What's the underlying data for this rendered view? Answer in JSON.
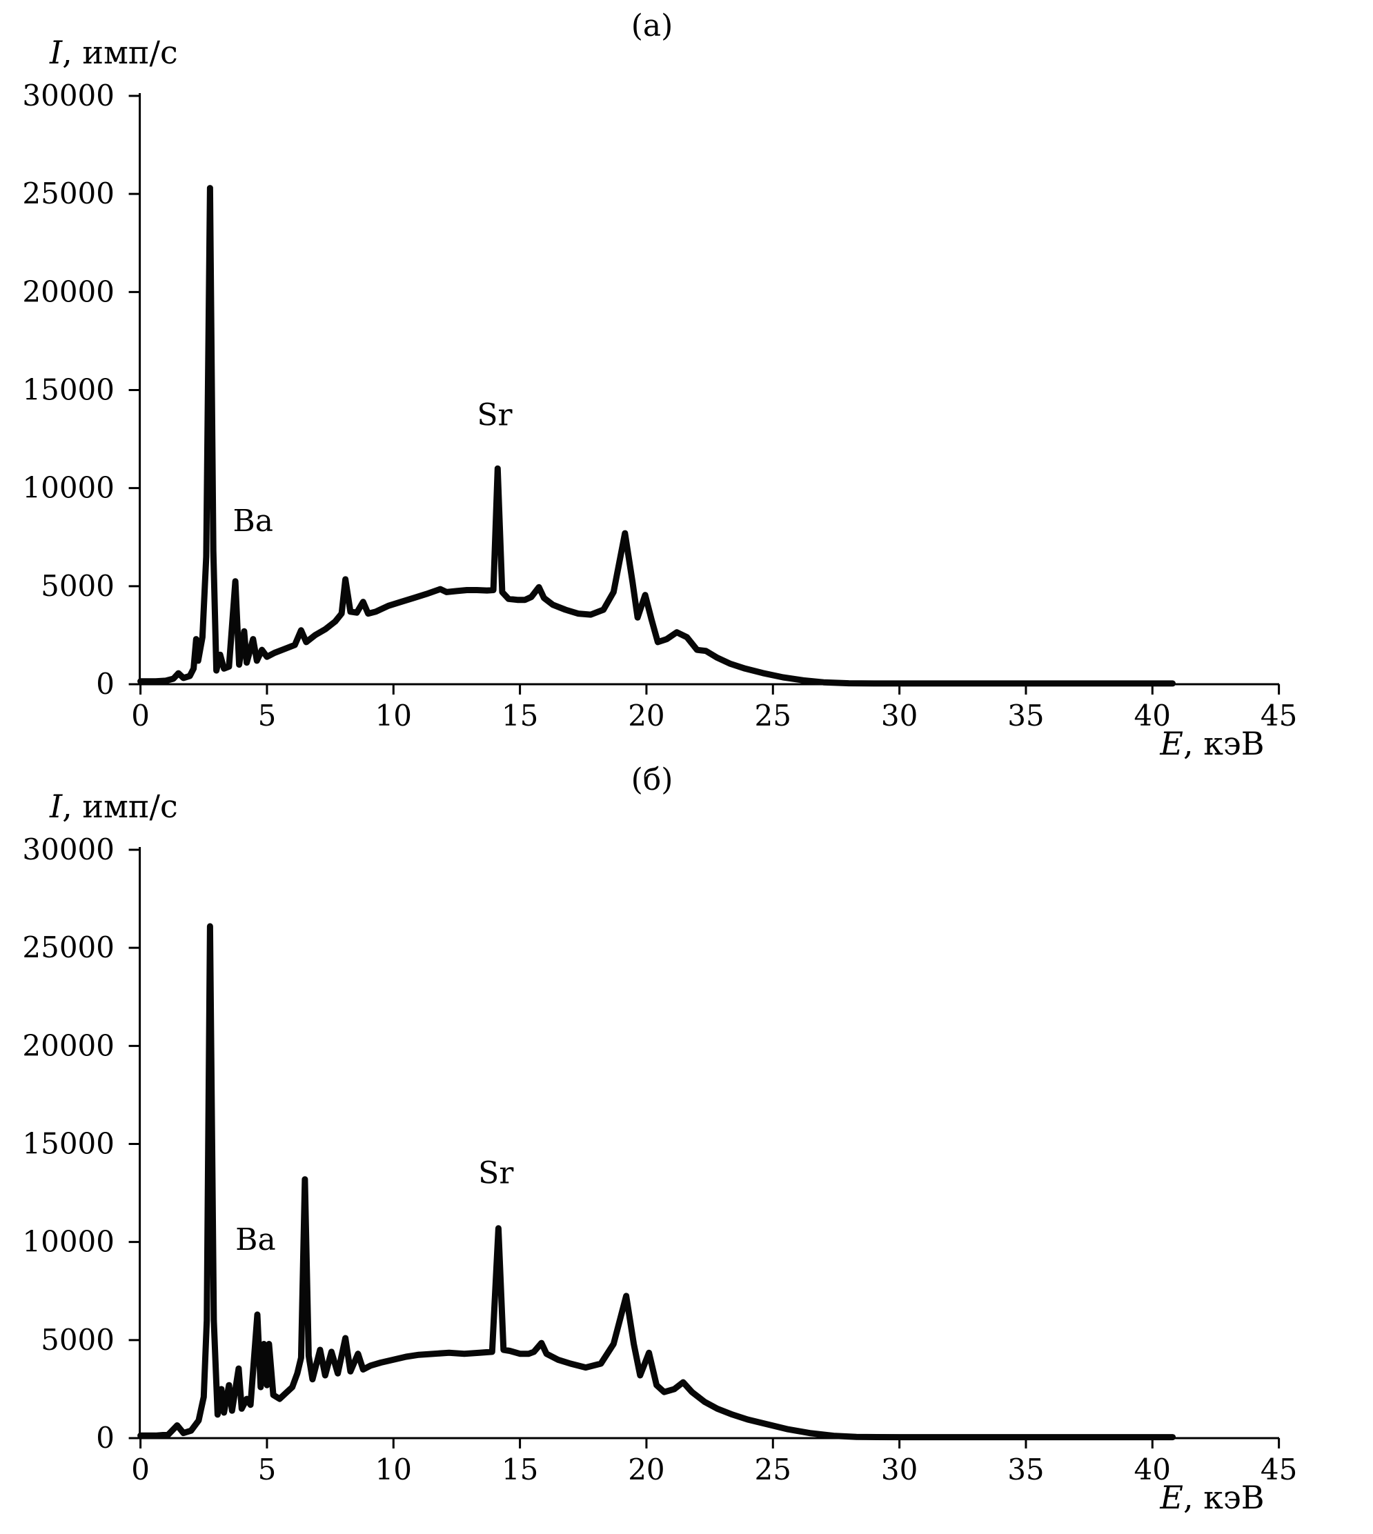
{
  "chart_data": [
    {
      "type": "line",
      "panel_tag": "(а)",
      "title": "(а)",
      "ylabel": "I, имп/с",
      "ylabel_sym": "I",
      "ylabel_rest": ", имп/с",
      "xlabel": "E, кэВ",
      "xlabel_sym": "E",
      "xlabel_rest": ", кэВ",
      "xlim": [
        0,
        45
      ],
      "ylim": [
        0,
        30000
      ],
      "x_ticks": [
        0,
        5,
        10,
        15,
        20,
        25,
        30,
        35,
        40,
        45
      ],
      "y_ticks": [
        30000,
        25000,
        20000,
        15000,
        10000,
        5000,
        0
      ],
      "grid": false,
      "legend": "none",
      "line_color": "#000000",
      "annotations": [
        {
          "label": "Ba",
          "x": 4.45,
          "y": 7800
        },
        {
          "label": "Sr",
          "x": 14.0,
          "y": 13200
        }
      ],
      "series": [
        {
          "name": "spectrum-a",
          "points": [
            [
              0,
              150
            ],
            [
              0.6,
              150
            ],
            [
              1.0,
              180
            ],
            [
              1.3,
              280
            ],
            [
              1.5,
              560
            ],
            [
              1.7,
              320
            ],
            [
              1.95,
              420
            ],
            [
              2.1,
              800
            ],
            [
              2.2,
              2300
            ],
            [
              2.28,
              1200
            ],
            [
              2.45,
              2400
            ],
            [
              2.6,
              6500
            ],
            [
              2.75,
              25300
            ],
            [
              2.88,
              6800
            ],
            [
              3.0,
              700
            ],
            [
              3.15,
              1500
            ],
            [
              3.3,
              800
            ],
            [
              3.5,
              900
            ],
            [
              3.75,
              5250
            ],
            [
              3.9,
              1000
            ],
            [
              4.1,
              2700
            ],
            [
              4.2,
              1100
            ],
            [
              4.45,
              2300
            ],
            [
              4.6,
              1200
            ],
            [
              4.8,
              1750
            ],
            [
              5.0,
              1400
            ],
            [
              5.3,
              1600
            ],
            [
              5.7,
              1800
            ],
            [
              6.1,
              2000
            ],
            [
              6.35,
              2750
            ],
            [
              6.55,
              2150
            ],
            [
              6.9,
              2500
            ],
            [
              7.3,
              2800
            ],
            [
              7.7,
              3200
            ],
            [
              7.95,
              3600
            ],
            [
              8.1,
              5350
            ],
            [
              8.3,
              3700
            ],
            [
              8.55,
              3650
            ],
            [
              8.8,
              4200
            ],
            [
              9.0,
              3600
            ],
            [
              9.3,
              3700
            ],
            [
              9.8,
              4000
            ],
            [
              10.3,
              4200
            ],
            [
              10.8,
              4400
            ],
            [
              11.3,
              4600
            ],
            [
              11.85,
              4850
            ],
            [
              12.1,
              4700
            ],
            [
              12.5,
              4750
            ],
            [
              12.9,
              4800
            ],
            [
              13.3,
              4800
            ],
            [
              13.7,
              4780
            ],
            [
              13.95,
              4800
            ],
            [
              14.12,
              11000
            ],
            [
              14.3,
              4700
            ],
            [
              14.55,
              4350
            ],
            [
              14.9,
              4300
            ],
            [
              15.2,
              4300
            ],
            [
              15.45,
              4450
            ],
            [
              15.75,
              4950
            ],
            [
              15.95,
              4400
            ],
            [
              16.3,
              4050
            ],
            [
              16.8,
              3800
            ],
            [
              17.3,
              3600
            ],
            [
              17.8,
              3550
            ],
            [
              18.3,
              3800
            ],
            [
              18.7,
              4700
            ],
            [
              19.15,
              7700
            ],
            [
              19.45,
              5200
            ],
            [
              19.65,
              3400
            ],
            [
              19.95,
              4550
            ],
            [
              20.2,
              3300
            ],
            [
              20.45,
              2150
            ],
            [
              20.8,
              2300
            ],
            [
              21.2,
              2650
            ],
            [
              21.6,
              2400
            ],
            [
              22.0,
              1750
            ],
            [
              22.35,
              1700
            ],
            [
              22.8,
              1350
            ],
            [
              23.3,
              1050
            ],
            [
              23.9,
              800
            ],
            [
              24.6,
              570
            ],
            [
              25.4,
              350
            ],
            [
              26.2,
              200
            ],
            [
              27.0,
              100
            ],
            [
              28.0,
              50
            ],
            [
              29.0,
              40
            ],
            [
              31,
              40
            ],
            [
              34,
              40
            ],
            [
              37,
              40
            ],
            [
              40.8,
              40
            ]
          ]
        }
      ]
    },
    {
      "type": "line",
      "panel_tag": "(б)",
      "title": "(б)",
      "ylabel": "I, имп/с",
      "ylabel_sym": "I",
      "ylabel_rest": ", имп/с",
      "xlabel": "E, кэВ",
      "xlabel_sym": "E",
      "xlabel_rest": ", кэВ",
      "xlim": [
        0,
        45
      ],
      "ylim": [
        0,
        30000
      ],
      "x_ticks": [
        0,
        5,
        10,
        15,
        20,
        25,
        30,
        35,
        40,
        45
      ],
      "y_ticks": [
        30000,
        25000,
        20000,
        15000,
        10000,
        5000,
        0
      ],
      "grid": false,
      "legend": "none",
      "line_color": "#000000",
      "annotations": [
        {
          "label": "Ba",
          "x": 4.55,
          "y": 9600
        },
        {
          "label": "Sr",
          "x": 14.05,
          "y": 13000
        }
      ],
      "series": [
        {
          "name": "spectrum-b",
          "points": [
            [
              0,
              130
            ],
            [
              0.6,
              130
            ],
            [
              1.1,
              180
            ],
            [
              1.45,
              650
            ],
            [
              1.7,
              260
            ],
            [
              2.0,
              380
            ],
            [
              2.3,
              900
            ],
            [
              2.5,
              2100
            ],
            [
              2.62,
              6000
            ],
            [
              2.75,
              26100
            ],
            [
              2.9,
              6000
            ],
            [
              3.05,
              1200
            ],
            [
              3.2,
              2500
            ],
            [
              3.3,
              1300
            ],
            [
              3.5,
              2700
            ],
            [
              3.62,
              1400
            ],
            [
              3.88,
              3550
            ],
            [
              4.0,
              1500
            ],
            [
              4.2,
              2000
            ],
            [
              4.35,
              1700
            ],
            [
              4.62,
              6300
            ],
            [
              4.75,
              2600
            ],
            [
              4.88,
              4800
            ],
            [
              5.0,
              2700
            ],
            [
              5.08,
              4800
            ],
            [
              5.25,
              2200
            ],
            [
              5.5,
              2000
            ],
            [
              5.75,
              2300
            ],
            [
              6.0,
              2600
            ],
            [
              6.2,
              3300
            ],
            [
              6.35,
              4100
            ],
            [
              6.5,
              13200
            ],
            [
              6.65,
              4200
            ],
            [
              6.8,
              3000
            ],
            [
              7.1,
              4500
            ],
            [
              7.3,
              3200
            ],
            [
              7.55,
              4400
            ],
            [
              7.8,
              3300
            ],
            [
              8.1,
              5100
            ],
            [
              8.3,
              3400
            ],
            [
              8.6,
              4300
            ],
            [
              8.8,
              3500
            ],
            [
              9.1,
              3700
            ],
            [
              9.5,
              3850
            ],
            [
              10.0,
              4000
            ],
            [
              10.5,
              4150
            ],
            [
              11.0,
              4250
            ],
            [
              11.6,
              4300
            ],
            [
              12.2,
              4350
            ],
            [
              12.8,
              4300
            ],
            [
              13.4,
              4350
            ],
            [
              13.9,
              4400
            ],
            [
              14.15,
              10700
            ],
            [
              14.35,
              4500
            ],
            [
              14.6,
              4450
            ],
            [
              15.0,
              4300
            ],
            [
              15.35,
              4300
            ],
            [
              15.55,
              4400
            ],
            [
              15.85,
              4850
            ],
            [
              16.05,
              4300
            ],
            [
              16.5,
              4000
            ],
            [
              17.0,
              3800
            ],
            [
              17.6,
              3600
            ],
            [
              18.2,
              3800
            ],
            [
              18.7,
              4800
            ],
            [
              19.2,
              7250
            ],
            [
              19.5,
              4800
            ],
            [
              19.75,
              3200
            ],
            [
              20.1,
              4350
            ],
            [
              20.4,
              2700
            ],
            [
              20.7,
              2350
            ],
            [
              21.1,
              2500
            ],
            [
              21.45,
              2850
            ],
            [
              21.8,
              2350
            ],
            [
              22.3,
              1850
            ],
            [
              22.8,
              1500
            ],
            [
              23.4,
              1200
            ],
            [
              24.0,
              950
            ],
            [
              24.8,
              700
            ],
            [
              25.6,
              450
            ],
            [
              26.5,
              250
            ],
            [
              27.4,
              120
            ],
            [
              28.3,
              60
            ],
            [
              30,
              50
            ],
            [
              33,
              50
            ],
            [
              36,
              50
            ],
            [
              40.8,
              50
            ]
          ]
        }
      ]
    }
  ]
}
